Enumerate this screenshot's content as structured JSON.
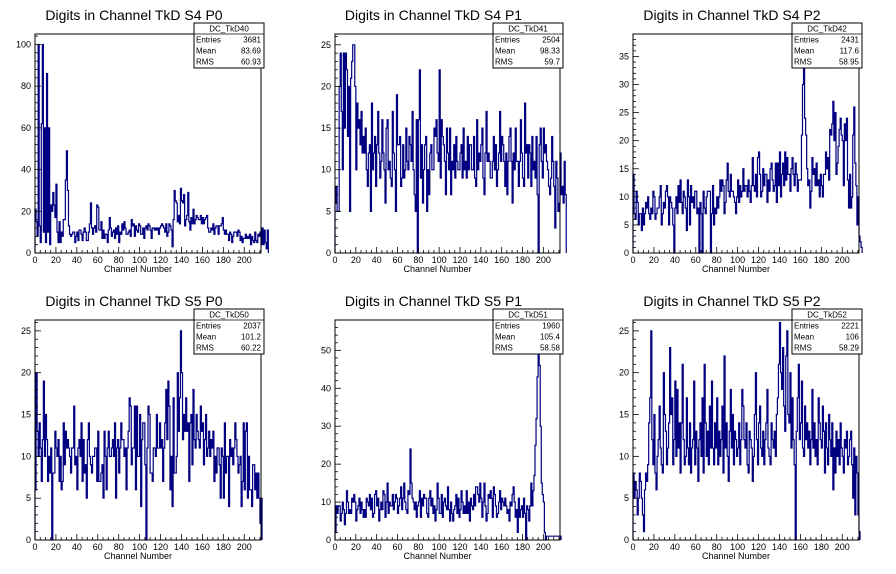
{
  "chart_data": [
    {
      "type": "bar",
      "title": "Digits in Channel TkD S4 P0",
      "xlabel": "Channel Number",
      "ylabel": "",
      "xlim": [
        0,
        216
      ],
      "ylim": [
        0,
        105
      ],
      "xticks": [
        0,
        20,
        40,
        60,
        80,
        100,
        120,
        140,
        160,
        180,
        200
      ],
      "yticks": [
        0,
        20,
        40,
        60,
        80,
        100
      ],
      "line_color": "#000080",
      "stats": {
        "name": "DC_TkD40",
        "entries": "3681",
        "mean": "83.69",
        "rms": "60.93"
      },
      "values": [
        21,
        15,
        8,
        100,
        13,
        5,
        62,
        100,
        10,
        60,
        5,
        86,
        10,
        60,
        4,
        23,
        20,
        29,
        23,
        17,
        33,
        10,
        5,
        15,
        5,
        10,
        8,
        16,
        16,
        35,
        49,
        30,
        13,
        9,
        8,
        9,
        10,
        10,
        5,
        8,
        10,
        6,
        11,
        11,
        9,
        6,
        10,
        12,
        10,
        6,
        6,
        10,
        14,
        24,
        12,
        9,
        12,
        13,
        10,
        23,
        22,
        11,
        11,
        15,
        7,
        11,
        7,
        9,
        9,
        5,
        11,
        17,
        12,
        8,
        10,
        11,
        7,
        12,
        9,
        13,
        5,
        10,
        9,
        14,
        11,
        15,
        12,
        9,
        9,
        10,
        11,
        8,
        16,
        13,
        14,
        8,
        13,
        11,
        10,
        14,
        13,
        9,
        9,
        12,
        7,
        12,
        13,
        11,
        14,
        13,
        11,
        7,
        12,
        12,
        11,
        12,
        11,
        12,
        9,
        12,
        13,
        14,
        13,
        12,
        10,
        14,
        8,
        10,
        14,
        13,
        11,
        3,
        16,
        30,
        25,
        24,
        15,
        18,
        14,
        31,
        25,
        24,
        28,
        13,
        16,
        18,
        29,
        15,
        11,
        17,
        14,
        21,
        14,
        16,
        18,
        17,
        16,
        16,
        18,
        14,
        17,
        14,
        16,
        17,
        18,
        12,
        10,
        10,
        12,
        11,
        14,
        9,
        12,
        13,
        13,
        9,
        13,
        13,
        14,
        17,
        11,
        9,
        11,
        9,
        9,
        6,
        10,
        9,
        5,
        8,
        10,
        10,
        10,
        8,
        11,
        10,
        6,
        8,
        5,
        7,
        7,
        9,
        7,
        8,
        7,
        9,
        4,
        8,
        6,
        5,
        10,
        6,
        5,
        9,
        8,
        10,
        4,
        12,
        4,
        11,
        5,
        2,
        11
      ]
    },
    {
      "type": "bar",
      "title": "Digits in Channel TkD S4 P1",
      "xlabel": "Channel Number",
      "ylabel": "",
      "xlim": [
        0,
        216
      ],
      "ylim": [
        0,
        26.3
      ],
      "xticks": [
        0,
        20,
        40,
        60,
        80,
        100,
        120,
        140,
        160,
        180,
        200
      ],
      "yticks": [
        0,
        5,
        10,
        15,
        20,
        25
      ],
      "line_color": "#000080",
      "stats": {
        "name": "DC_TkD41",
        "entries": "2504",
        "mean": "98.33",
        "rms": "59.7"
      },
      "values": [
        6,
        8,
        5,
        5,
        20,
        24,
        17,
        10,
        24,
        15,
        24,
        22,
        14,
        20,
        5,
        21,
        23,
        25,
        25,
        20,
        10,
        18,
        15,
        16,
        13,
        17,
        12,
        14,
        12,
        15,
        10,
        8,
        12,
        13,
        5,
        18,
        10,
        12,
        14,
        8,
        13,
        17,
        12,
        9,
        11,
        16,
        12,
        10,
        6,
        15,
        16,
        10,
        11,
        9,
        8,
        17,
        12,
        10,
        5,
        19,
        13,
        13,
        14,
        8,
        9,
        13,
        9,
        10,
        15,
        11,
        10,
        14,
        13,
        11,
        17,
        10,
        7,
        5,
        16,
        0,
        16,
        22,
        9,
        13,
        6,
        10,
        13,
        14,
        5,
        10,
        7,
        12,
        13,
        10,
        10,
        15,
        14,
        16,
        12,
        11,
        22,
        9,
        16,
        14,
        13,
        11,
        7,
        15,
        12,
        10,
        15,
        7,
        11,
        10,
        13,
        9,
        14,
        11,
        10,
        10,
        12,
        13,
        9,
        15,
        10,
        11,
        9,
        14,
        10,
        13,
        13,
        10,
        10,
        14,
        9,
        8,
        16,
        10,
        12,
        11,
        13,
        15,
        9,
        7,
        12,
        17,
        11,
        12,
        11,
        9,
        9,
        11,
        14,
        10,
        13,
        8,
        10,
        12,
        17,
        11,
        14,
        13,
        11,
        8,
        12,
        7,
        11,
        14,
        15,
        11,
        6,
        12,
        10,
        15,
        11,
        11,
        8,
        11,
        16,
        12,
        9,
        8,
        18,
        12,
        13,
        9,
        13,
        12,
        8,
        14,
        10,
        11,
        9,
        14,
        7,
        0,
        13,
        15,
        11,
        9,
        15,
        12,
        13,
        11,
        10,
        8,
        7,
        9,
        14,
        11,
        8,
        3,
        11,
        9,
        5,
        6,
        12,
        7,
        8,
        6,
        11,
        7
      ]
    },
    {
      "type": "bar",
      "title": "Digits in Channel TkD S4 P2",
      "xlabel": "Channel Number",
      "ylabel": "",
      "xlim": [
        0,
        216
      ],
      "ylim": [
        0,
        39
      ],
      "xticks": [
        0,
        20,
        40,
        60,
        80,
        100,
        120,
        140,
        160,
        180,
        200
      ],
      "yticks": [
        0,
        5,
        10,
        15,
        20,
        25,
        30,
        35
      ],
      "line_color": "#000080",
      "stats": {
        "name": "DC_TkD42",
        "entries": "2431",
        "mean": "117.6",
        "rms": "58.95"
      },
      "values": [
        14,
        7,
        6,
        11,
        9,
        5,
        7,
        7,
        4,
        8,
        5,
        7,
        9,
        8,
        10,
        7,
        6,
        8,
        7,
        11,
        10,
        6,
        7,
        8,
        8,
        10,
        12,
        5,
        7,
        9,
        8,
        11,
        12,
        10,
        5,
        10,
        9,
        8,
        5,
        0,
        8,
        10,
        7,
        12,
        9,
        13,
        9,
        7,
        11,
        10,
        8,
        4,
        13,
        10,
        5,
        12,
        9,
        10,
        8,
        11,
        11,
        7,
        8,
        0,
        9,
        7,
        0,
        11,
        8,
        7,
        10,
        11,
        11,
        11,
        0,
        7,
        12,
        5,
        8,
        7,
        10,
        8,
        10,
        13,
        11,
        13,
        12,
        7,
        9,
        13,
        16,
        11,
        10,
        14,
        11,
        11,
        10,
        9,
        7,
        10,
        13,
        9,
        12,
        10,
        11,
        15,
        11,
        12,
        12,
        10,
        13,
        11,
        9,
        12,
        17,
        12,
        11,
        14,
        10,
        17,
        18,
        14,
        10,
        11,
        15,
        12,
        14,
        14,
        9,
        13,
        11,
        15,
        16,
        13,
        11,
        12,
        16,
        9,
        16,
        12,
        18,
        10,
        14,
        16,
        12,
        18,
        13,
        17,
        14,
        14,
        11,
        15,
        17,
        14,
        12,
        16,
        14,
        11,
        13,
        13,
        13,
        21,
        30,
        37,
        24,
        21,
        15,
        12,
        13,
        8,
        11,
        17,
        14,
        15,
        12,
        16,
        12,
        13,
        10,
        14,
        12,
        10,
        14,
        14,
        18,
        15,
        17,
        13,
        22,
        21,
        23,
        27,
        20,
        25,
        14,
        16,
        19,
        22,
        24,
        21,
        20,
        12,
        23,
        20,
        24,
        13,
        8,
        14,
        8,
        10,
        21,
        26,
        16,
        12,
        5,
        10,
        3,
        2,
        1
      ]
    },
    {
      "type": "bar",
      "title": "Digits in Channel TkD S5 P0",
      "xlabel": "Channel Number",
      "ylabel": "",
      "xlim": [
        0,
        216
      ],
      "ylim": [
        0,
        26.3
      ],
      "xticks": [
        0,
        20,
        40,
        60,
        80,
        100,
        120,
        140,
        160,
        180,
        200
      ],
      "yticks": [
        0,
        5,
        10,
        15,
        20,
        25
      ],
      "line_color": "#000080",
      "stats": {
        "name": "DC_TkD50",
        "entries": "2037",
        "mean": "101.2",
        "rms": "60.22"
      },
      "values": [
        6,
        20,
        13,
        10,
        14,
        11,
        7,
        12,
        19,
        10,
        15,
        12,
        7,
        10,
        8,
        11,
        0,
        8,
        8,
        13,
        11,
        10,
        12,
        7,
        10,
        6,
        7,
        14,
        9,
        13,
        11,
        12,
        11,
        10,
        8,
        11,
        11,
        16,
        9,
        10,
        6,
        11,
        12,
        10,
        14,
        7,
        12,
        8,
        9,
        5,
        12,
        14,
        10,
        9,
        8,
        10,
        10,
        11,
        11,
        7,
        13,
        7,
        7,
        8,
        9,
        5,
        13,
        10,
        6,
        11,
        13,
        10,
        10,
        11,
        12,
        10,
        14,
        5,
        11,
        12,
        8,
        11,
        14,
        12,
        12,
        10,
        11,
        6,
        11,
        13,
        17,
        16,
        9,
        11,
        11,
        16,
        6,
        16,
        10,
        10,
        15,
        4,
        12,
        14,
        14,
        9,
        0,
        11,
        16,
        15,
        8,
        8,
        7,
        11,
        11,
        10,
        15,
        11,
        11,
        14,
        11,
        12,
        7,
        11,
        14,
        18,
        12,
        19,
        16,
        6,
        10,
        4,
        17,
        8,
        8,
        10,
        20,
        13,
        17,
        25,
        20,
        12,
        15,
        13,
        17,
        13,
        14,
        7,
        14,
        15,
        9,
        18,
        12,
        11,
        15,
        13,
        12,
        11,
        16,
        13,
        14,
        9,
        12,
        15,
        10,
        11,
        13,
        10,
        12,
        11,
        13,
        7,
        10,
        8,
        11,
        11,
        9,
        5,
        11,
        10,
        5,
        14,
        8,
        10,
        10,
        4,
        12,
        10,
        11,
        9,
        11,
        14,
        12,
        10,
        8,
        9,
        10,
        4,
        7,
        14,
        6,
        13,
        14,
        5,
        10,
        6,
        6,
        4,
        9,
        9,
        6,
        8,
        5,
        8,
        5,
        2,
        5
      ]
    },
    {
      "type": "bar",
      "title": "Digits in Channel TkD S5 P1",
      "xlabel": "Channel Number",
      "ylabel": "",
      "xlim": [
        0,
        216
      ],
      "ylim": [
        0,
        58
      ],
      "xticks": [
        0,
        20,
        40,
        60,
        80,
        100,
        120,
        140,
        160,
        180,
        200
      ],
      "yticks": [
        0,
        10,
        20,
        30,
        40,
        50
      ],
      "line_color": "#000080",
      "stats": {
        "name": "DC_TkD51",
        "entries": "1960",
        "mean": "105.4",
        "rms": "58.58"
      },
      "values": [
        2,
        9,
        7,
        9,
        9,
        5,
        7,
        10,
        8,
        4,
        7,
        13,
        10,
        7,
        8,
        7,
        11,
        10,
        12,
        10,
        5,
        8,
        9,
        11,
        7,
        10,
        8,
        6,
        8,
        6,
        11,
        10,
        9,
        12,
        8,
        11,
        6,
        7,
        12,
        13,
        9,
        11,
        5,
        8,
        10,
        8,
        13,
        12,
        6,
        10,
        15,
        7,
        10,
        9,
        9,
        12,
        8,
        10,
        12,
        11,
        7,
        9,
        11,
        14,
        8,
        11,
        15,
        10,
        8,
        7,
        13,
        12,
        24,
        15,
        11,
        10,
        8,
        10,
        6,
        9,
        10,
        13,
        6,
        11,
        9,
        12,
        11,
        11,
        7,
        6,
        11,
        13,
        9,
        11,
        7,
        9,
        5,
        8,
        15,
        11,
        7,
        7,
        12,
        6,
        10,
        11,
        9,
        8,
        14,
        8,
        5,
        10,
        7,
        5,
        8,
        9,
        12,
        7,
        11,
        6,
        8,
        13,
        10,
        7,
        9,
        7,
        13,
        7,
        10,
        5,
        11,
        9,
        8,
        12,
        9,
        14,
        14,
        12,
        10,
        15,
        11,
        6,
        10,
        15,
        9,
        5,
        7,
        12,
        11,
        13,
        11,
        6,
        14,
        12,
        9,
        6,
        7,
        10,
        13,
        8,
        11,
        10,
        9,
        11,
        9,
        7,
        8,
        5,
        10,
        9,
        12,
        14,
        10,
        6,
        8,
        2,
        11,
        6,
        8,
        9,
        6,
        11,
        7,
        0,
        9,
        8,
        5,
        9,
        15,
        9,
        13,
        17,
        25,
        32,
        43,
        55,
        46,
        30,
        15,
        12,
        10,
        2,
        0,
        1,
        1,
        1,
        1,
        1,
        1,
        1,
        1,
        1,
        1,
        1,
        1,
        1,
        1
      ]
    },
    {
      "type": "bar",
      "title": "Digits in Channel TkD S5 P2",
      "xlabel": "Channel Number",
      "ylabel": "",
      "xlim": [
        0,
        216
      ],
      "ylim": [
        0,
        26.3
      ],
      "xticks": [
        0,
        20,
        40,
        60,
        80,
        100,
        120,
        140,
        160,
        180,
        200
      ],
      "yticks": [
        0,
        5,
        10,
        15,
        20,
        25
      ],
      "line_color": "#000080",
      "stats": {
        "name": "DC_TkD52",
        "entries": "2221",
        "mean": "106",
        "rms": "58.29"
      },
      "values": [
        8,
        5,
        7,
        6,
        3,
        5,
        8,
        7,
        5,
        3,
        1,
        6,
        8,
        7,
        9,
        14,
        17,
        25,
        12,
        9,
        15,
        8,
        6,
        10,
        12,
        16,
        11,
        9,
        8,
        20,
        15,
        13,
        9,
        11,
        14,
        23,
        15,
        17,
        9,
        12,
        19,
        10,
        18,
        11,
        14,
        8,
        14,
        21,
        12,
        9,
        10,
        17,
        11,
        9,
        14,
        8,
        11,
        12,
        19,
        9,
        13,
        11,
        7,
        12,
        14,
        10,
        17,
        8,
        21,
        14,
        10,
        13,
        9,
        16,
        11,
        19,
        11,
        9,
        14,
        11,
        17,
        9,
        13,
        10,
        12,
        16,
        8,
        22,
        11,
        14,
        10,
        7,
        13,
        18,
        11,
        15,
        9,
        13,
        12,
        10,
        11,
        14,
        9,
        12,
        18,
        16,
        12,
        11,
        14,
        9,
        8,
        13,
        12,
        11,
        7,
        10,
        15,
        20,
        12,
        9,
        14,
        16,
        11,
        10,
        13,
        9,
        12,
        14,
        18,
        11,
        10,
        9,
        14,
        12,
        11,
        13,
        10,
        15,
        17,
        21,
        26,
        20,
        18,
        23,
        16,
        13,
        22,
        25,
        15,
        14,
        20,
        11,
        17,
        12,
        9,
        0,
        13,
        17,
        21,
        12,
        14,
        19,
        11,
        10,
        16,
        12,
        14,
        11,
        13,
        9,
        12,
        18,
        11,
        14,
        10,
        12,
        9,
        17,
        14,
        12,
        11,
        16,
        13,
        8,
        14,
        11,
        9,
        15,
        12,
        10,
        14,
        6,
        11,
        8,
        13,
        10,
        12,
        9,
        14,
        11,
        10,
        8,
        12,
        11,
        13,
        9,
        10,
        12,
        13,
        9,
        5,
        11,
        3,
        10,
        8,
        3,
        1
      ]
    }
  ]
}
